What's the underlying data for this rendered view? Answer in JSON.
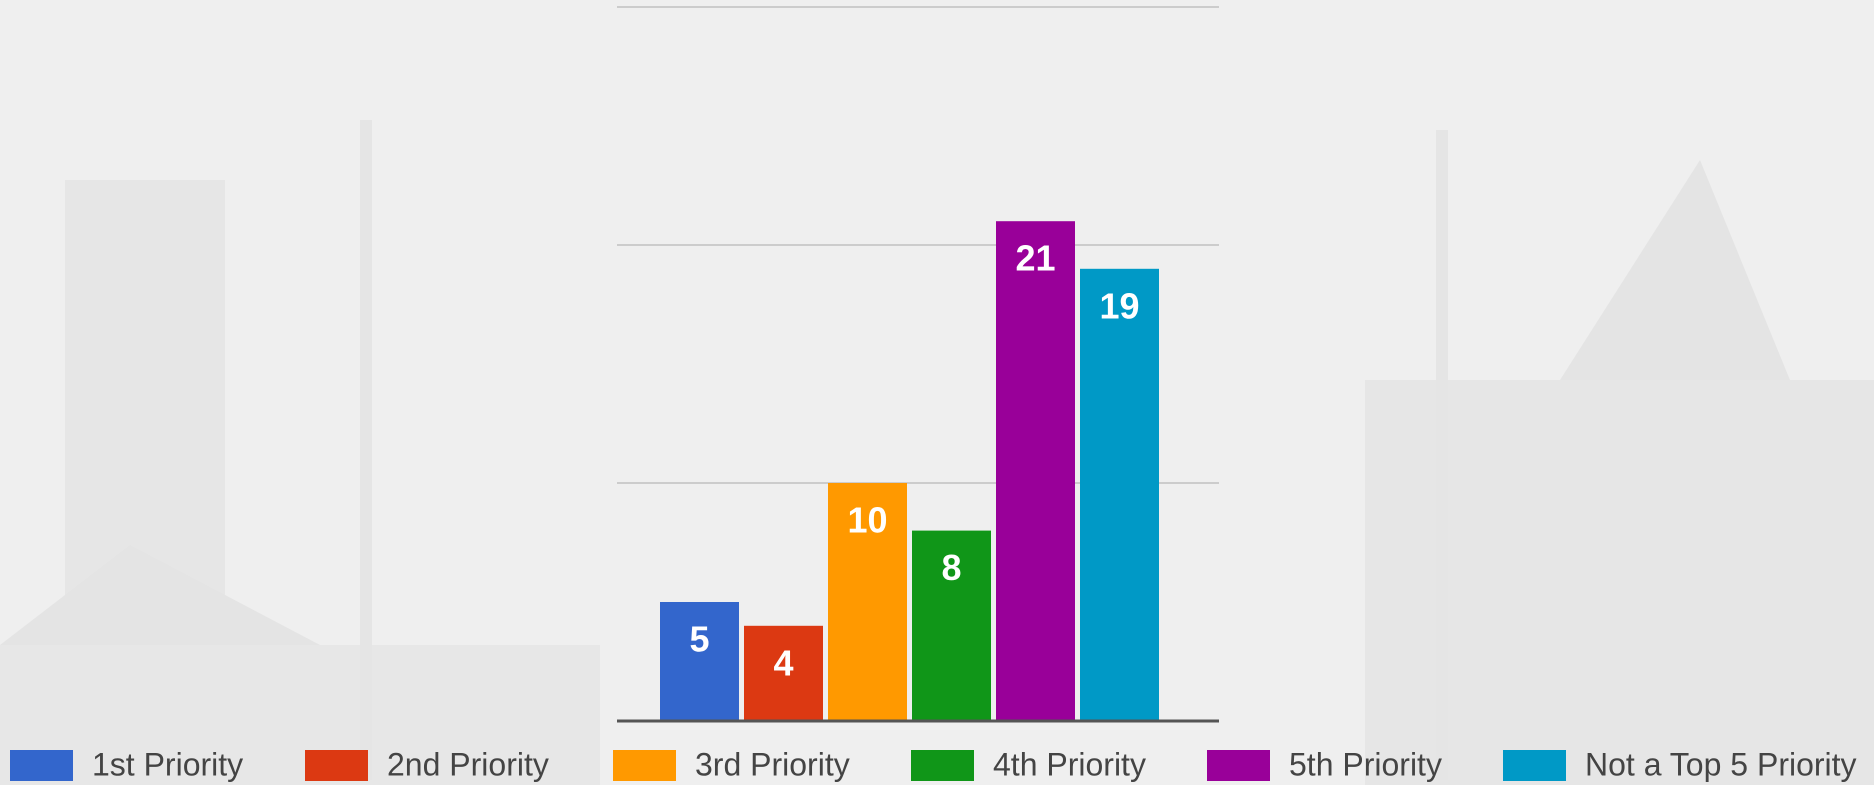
{
  "chart_data": {
    "type": "bar",
    "series": [
      {
        "name": "1st Priority",
        "color": "#3366cc",
        "values": [
          5
        ]
      },
      {
        "name": "2nd Priority",
        "color": "#dc3912",
        "values": [
          4
        ]
      },
      {
        "name": "3rd Priority",
        "color": "#ff9900",
        "values": [
          10
        ]
      },
      {
        "name": "4th Priority",
        "color": "#109618",
        "values": [
          8
        ]
      },
      {
        "name": "5th Priority",
        "color": "#990099",
        "values": [
          21
        ]
      },
      {
        "name": "Not a Top 5 Priority",
        "color": "#0099c6",
        "values": [
          19
        ]
      }
    ],
    "ylim": [
      0,
      30
    ],
    "yticks": [
      0,
      10,
      20,
      30
    ],
    "grid": true,
    "legend": "bottom"
  }
}
